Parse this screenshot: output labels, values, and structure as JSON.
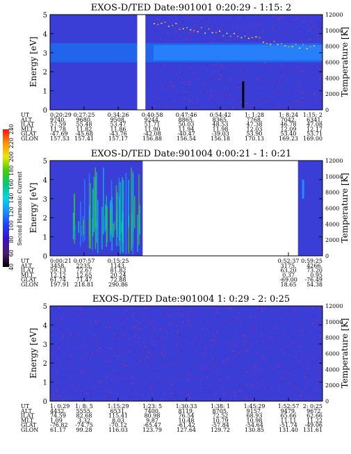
{
  "colorbar": {
    "label": "Second Harmonic Current",
    "ticks": [
      "40",
      "60",
      "80",
      "100",
      "120",
      "140",
      "160",
      "180",
      "200",
      "220",
      "240"
    ]
  },
  "chart_data": [
    {
      "type": "heatmap",
      "title": "EXOS-D/TED   Date:901001   0:20:29 - 1:15: 2",
      "ylabel": "Energy [eV]",
      "ylabel_right": "Temperature [K]",
      "ylim": [
        0,
        5
      ],
      "y_ticks": [
        "0",
        "1",
        "2",
        "3",
        "4",
        "5"
      ],
      "y2lim": [
        0,
        12000
      ],
      "y2_ticks": [
        "0",
        "2000",
        "4000",
        "6000",
        "8000",
        "10000",
        "12000"
      ],
      "gaps": [
        [
          0.32,
          0.35
        ]
      ],
      "band": {
        "center_eV": 3.0,
        "width_eV": 1.0,
        "start": 0.0,
        "end": 1.0
      },
      "segments": [
        [
          0.38,
          1.0
        ]
      ],
      "orbit_table": {
        "labels": [
          "UT",
          "ALT",
          "ILAT",
          "MLT",
          "GLAT",
          "GLON"
        ],
        "columns": [
          {
            "pos": 0.0,
            "values": [
              "0:20:29",
              "9740.",
              "57.59",
              "11.78",
              "-47.69",
              "157.53"
            ]
          },
          {
            "pos": 0.125,
            "values": [
              "0:27:25",
              "9680.",
              "55.48",
              "11.82",
              "-45.68",
              "157.41"
            ]
          },
          {
            "pos": 0.25,
            "values": [
              "0:34:26",
              "9508.",
              "53.47",
              "11.86",
              "-43.76",
              "157.17"
            ]
          },
          {
            "pos": 0.375,
            "values": [
              "0:40:58",
              "9244.",
              "51.71",
              "11.90",
              "-42.08",
              "156.88"
            ]
          },
          {
            "pos": 0.5,
            "values": [
              "0:47:46",
              "8865.",
              "50.03",
              "11.94",
              "-40.47",
              "156.54"
            ]
          },
          {
            "pos": 0.625,
            "values": [
              "0:54:42",
              "8365.",
              "48.53",
              "11.98",
              "-39.03",
              "156.18"
            ]
          },
          {
            "pos": 0.75,
            "values": [
              "1: 1:28",
              "7768.",
              "47.38",
              "12.03",
              "53.90",
              "170.13"
            ]
          },
          {
            "pos": 0.875,
            "values": [
              "1: 8:24",
              "7042.",
              "46.78",
              "12.09",
              "53.40",
              "169.23"
            ]
          },
          {
            "pos": 1.0,
            "values": [
              "1:15: 2",
              "6341.",
              "47.08",
              "12.17",
              "53.71",
              "169.00"
            ]
          }
        ]
      }
    },
    {
      "type": "heatmap",
      "title": "EXOS-D/TED   Date:901004   0:00:21 - 1: 0:21",
      "ylabel": "Energy [eV]",
      "ylabel_right": "Temperature [K]",
      "ylim": [
        0,
        5
      ],
      "y_ticks": [
        "0",
        "1",
        "2",
        "3",
        "4",
        "5"
      ],
      "y2lim": [
        0,
        12000
      ],
      "y2_ticks": [
        "0",
        "2000",
        "4000",
        "6000",
        "8000",
        "10000",
        "12000"
      ],
      "segments": [
        [
          0.0,
          0.34
        ],
        [
          0.91,
          1.0
        ]
      ],
      "orbit_table": {
        "labels": [
          "UT",
          "ALT",
          "ILAT",
          "MLT",
          "GLAT",
          "GLON"
        ],
        "columns": [
          {
            "pos": 0.0,
            "values": [
              "0:00:21",
              "3458.",
              "59.13",
              "12.12",
              "61.74",
              "197.91"
            ]
          },
          {
            "pos": 0.125,
            "values": [
              "0:07:57",
              "2235.",
              "72.67",
              "12.65",
              "71.47",
              "218.81"
            ]
          },
          {
            "pos": 0.25,
            "values": [
              "0:15:25",
              "1143.",
              "81.82",
              "20.24",
              "72.88",
              "290.86"
            ]
          },
          {
            "pos": 0.875,
            "values": [
              "0:52:37",
              "3175.",
              "63.20",
              "0.37",
              "-69.00",
              "18.65"
            ]
          },
          {
            "pos": 1.0,
            "values": [
              "0:59:25",
              "4266.",
              "73.20",
              "0.95",
              "-76.49",
              "54.38"
            ]
          }
        ]
      }
    },
    {
      "type": "heatmap",
      "title": "EXOS-D/TED   Date:901004   1: 0:29 - 2: 0:25",
      "ylabel": "Energy [eV]",
      "ylabel_right": "Temperature [K]",
      "ylim": [
        0,
        5
      ],
      "y_ticks": [
        "0",
        "1",
        "2",
        "3",
        "4",
        "5"
      ],
      "y2lim": [
        0,
        12000
      ],
      "y2_ticks": [
        "0",
        "2000",
        "4000",
        "6000",
        "8000",
        "10000",
        "12000"
      ],
      "segments": [
        [
          0.0,
          1.0
        ]
      ],
      "orbit_table": {
        "labels": [
          "UT",
          "ALT",
          "ILAT",
          "MLT",
          "GLAT",
          "GLON"
        ],
        "columns": [
          {
            "pos": 0.0,
            "values": [
              "1: 0:29",
              "4432.",
              "74.59",
              "1.09",
              "-76.82",
              "61.17"
            ]
          },
          {
            "pos": 0.125,
            "values": [
              "1: 8: 5",
              "5555.",
              "82.68",
              "3.32",
              "-74.75",
              "99.28"
            ]
          },
          {
            "pos": 0.25,
            "values": [
              "1:15:29",
              "6531.",
              "115.41",
              "8.03",
              "-70.12",
              "116.03"
            ]
          },
          {
            "pos": 0.375,
            "values": [
              "1:23: 5",
              "7400.",
              "80.98",
              "9.87",
              "-65.47",
              "123.79"
            ]
          },
          {
            "pos": 0.5,
            "values": [
              "1:30:33",
              "8119.",
              "76.54",
              "10.48",
              "-61.42",
              "127.64"
            ]
          },
          {
            "pos": 0.625,
            "values": [
              "1:38: 1",
              "8705.",
              "72.52",
              "10.79",
              "-57.84",
              "129.72"
            ]
          },
          {
            "pos": 0.75,
            "values": [
              "1:45:29",
              "9157.",
              "68.93",
              "10.98",
              "-54.64",
              "130.85"
            ]
          },
          {
            "pos": 0.875,
            "values": [
              "1:52:57",
              "9479.",
              "65.66",
              "11.11",
              "-51.74",
              "131.40"
            ]
          },
          {
            "pos": 1.0,
            "values": [
              "2: 0:25",
              "9672.",
              "62.66",
              "11.22",
              "-49.06",
              "131.61"
            ]
          }
        ]
      }
    }
  ]
}
